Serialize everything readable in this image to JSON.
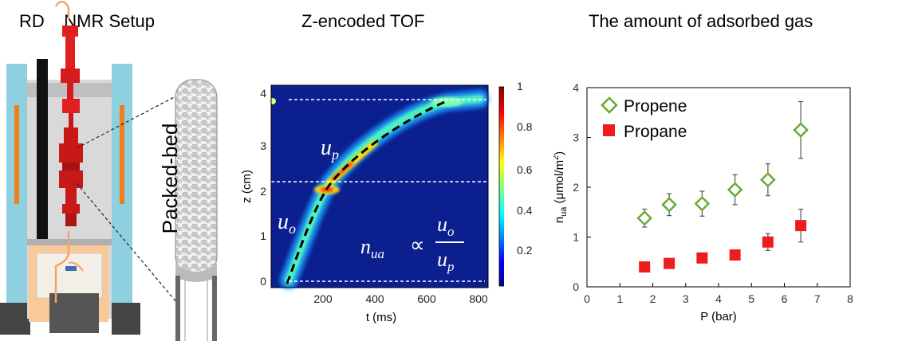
{
  "titles": {
    "setup": "RD    NMR Setup",
    "tof": "Z-encoded TOF",
    "adsorbed": "The amount of adsorbed gas"
  },
  "setup": {
    "packed_bed_label": "Packed-bed"
  },
  "tof_plot": {
    "xlabel": "t (ms)",
    "ylabel": "z (cm)",
    "xticks": [
      "200",
      "400",
      "600",
      "800"
    ],
    "yticks": [
      "0",
      "1",
      "2",
      "3",
      "4"
    ],
    "colorbar_ticks": [
      "0.2",
      "0.4",
      "0.6",
      "0.8",
      "1"
    ],
    "label_up": "u",
    "label_up_sub": "p",
    "label_uo": "u",
    "label_uo_sub": "o",
    "formula_lhs": "n",
    "formula_lhs_sub": "ua",
    "formula_propto": "∝",
    "formula_num": "u",
    "formula_num_sub": "o",
    "formula_den": "u",
    "formula_den_sub": "p"
  },
  "chart_data": {
    "type": "scatter",
    "xlabel": "P (bar)",
    "ylabel": "n_ua (μmol/m²)",
    "ylabel_main": "n",
    "ylabel_sub": "ua",
    "ylabel_rest": " (μmol/m",
    "ylabel_sup": "2",
    "ylabel_end": ")",
    "xlim": [
      0,
      8
    ],
    "ylim": [
      0,
      4
    ],
    "xticks": [
      "0",
      "1",
      "2",
      "3",
      "4",
      "5",
      "6",
      "7",
      "8"
    ],
    "yticks": [
      "0",
      "1",
      "2",
      "3",
      "4"
    ],
    "legend_position": "top-left",
    "series": [
      {
        "name": "Propene",
        "marker": "open-diamond",
        "color": "#6aaa32",
        "points": [
          {
            "x": 1.75,
            "y": 1.38,
            "err": 0.18
          },
          {
            "x": 2.5,
            "y": 1.65,
            "err": 0.22
          },
          {
            "x": 3.5,
            "y": 1.67,
            "err": 0.25
          },
          {
            "x": 4.5,
            "y": 1.95,
            "err": 0.3
          },
          {
            "x": 5.5,
            "y": 2.15,
            "err": 0.32
          },
          {
            "x": 6.5,
            "y": 3.15,
            "err": 0.57
          }
        ]
      },
      {
        "name": "Propane",
        "marker": "filled-square",
        "color": "#ee1c1c",
        "points": [
          {
            "x": 1.75,
            "y": 0.4,
            "err": 0.0
          },
          {
            "x": 2.5,
            "y": 0.47,
            "err": 0.05
          },
          {
            "x": 3.5,
            "y": 0.58,
            "err": 0.05
          },
          {
            "x": 4.5,
            "y": 0.64,
            "err": 0.07
          },
          {
            "x": 5.5,
            "y": 0.9,
            "err": 0.17
          },
          {
            "x": 6.5,
            "y": 1.23,
            "err": 0.33
          }
        ]
      }
    ]
  }
}
